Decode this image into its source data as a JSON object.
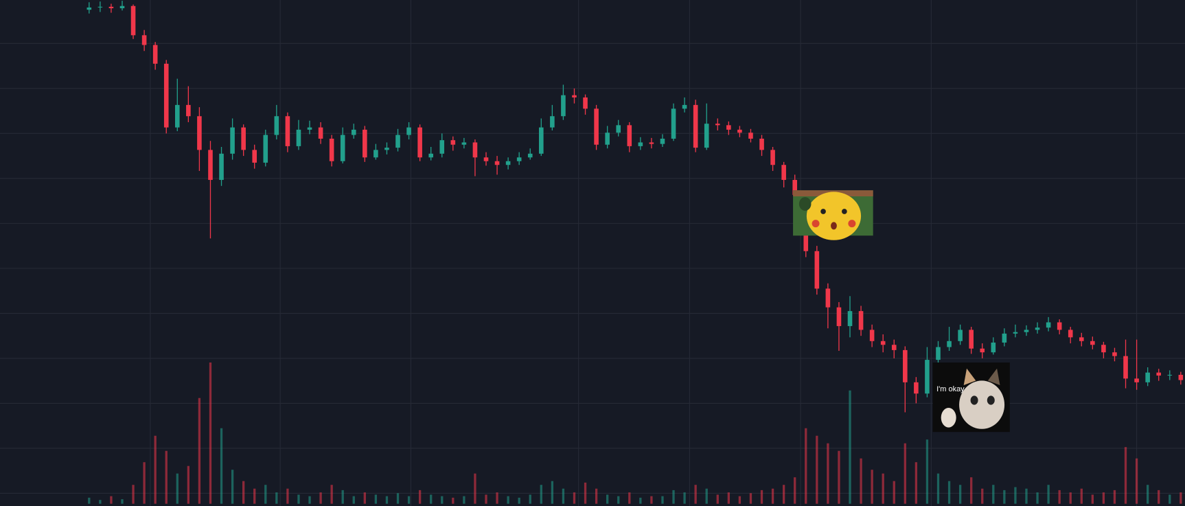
{
  "chart_data": {
    "type": "candlestick",
    "open": [
      645,
      648,
      649,
      647,
      650,
      611,
      598,
      573,
      488,
      518,
      503,
      458,
      418,
      453,
      488,
      458,
      441,
      478,
      503,
      463,
      485,
      488,
      473,
      443,
      478,
      485,
      448,
      458,
      461,
      478,
      488,
      448,
      453,
      471,
      465,
      468,
      448,
      443,
      438,
      443,
      448,
      453,
      488,
      503,
      531,
      528,
      513,
      465,
      481,
      491,
      463,
      468,
      466,
      473,
      513,
      518,
      461,
      493,
      491,
      485,
      481,
      473,
      458,
      438,
      418,
      398,
      323,
      273,
      248,
      223,
      243,
      218,
      203,
      198,
      191,
      148,
      133,
      178,
      195,
      203,
      218,
      193,
      188,
      201,
      213,
      215,
      218,
      221,
      228,
      218,
      208,
      203,
      198,
      188,
      183,
      153,
      148,
      161,
      157,
      158
    ],
    "high": [
      655,
      656,
      653,
      657,
      652,
      618,
      602,
      578,
      553,
      543,
      515,
      470,
      462,
      500,
      492,
      465,
      485,
      518,
      508,
      498,
      497,
      495,
      478,
      488,
      493,
      490,
      466,
      468,
      486,
      495,
      492,
      462,
      480,
      476,
      474,
      472,
      455,
      450,
      448,
      455,
      460,
      500,
      518,
      545,
      540,
      532,
      518,
      490,
      498,
      495,
      475,
      474,
      479,
      520,
      528,
      525,
      520,
      500,
      496,
      490,
      486,
      478,
      462,
      442,
      425,
      402,
      330,
      280,
      255,
      263,
      250,
      225,
      212,
      205,
      196,
      155,
      195,
      203,
      222,
      225,
      222,
      200,
      208,
      220,
      225,
      224,
      228,
      235,
      232,
      222,
      214,
      209,
      202,
      194,
      205,
      205,
      168,
      166,
      164,
      162
    ],
    "low": [
      640,
      642,
      641,
      644,
      606,
      590,
      565,
      480,
      483,
      495,
      430,
      340,
      410,
      445,
      450,
      433,
      436,
      472,
      455,
      458,
      479,
      466,
      436,
      440,
      473,
      442,
      445,
      452,
      456,
      472,
      443,
      444,
      448,
      457,
      460,
      423,
      437,
      425,
      432,
      438,
      445,
      450,
      484,
      498,
      520,
      505,
      458,
      460,
      476,
      455,
      458,
      460,
      462,
      470,
      508,
      455,
      458,
      484,
      478,
      475,
      468,
      450,
      430,
      408,
      385,
      315,
      265,
      220,
      190,
      208,
      210,
      195,
      188,
      180,
      108,
      120,
      128,
      172,
      190,
      198,
      186,
      180,
      185,
      196,
      208,
      210,
      213,
      216,
      212,
      200,
      196,
      192,
      180,
      176,
      140,
      138,
      143,
      150,
      151,
      145
    ],
    "close": [
      648,
      649,
      647,
      650,
      611,
      598,
      573,
      488,
      518,
      503,
      458,
      418,
      453,
      488,
      458,
      441,
      478,
      503,
      463,
      485,
      488,
      473,
      443,
      478,
      485,
      448,
      458,
      461,
      478,
      488,
      448,
      453,
      471,
      465,
      468,
      448,
      443,
      438,
      443,
      448,
      453,
      488,
      503,
      531,
      528,
      513,
      465,
      481,
      491,
      463,
      468,
      466,
      473,
      513,
      518,
      461,
      493,
      491,
      485,
      481,
      473,
      458,
      438,
      418,
      398,
      323,
      273,
      248,
      223,
      243,
      218,
      203,
      198,
      191,
      148,
      133,
      178,
      195,
      203,
      218,
      193,
      188,
      201,
      213,
      215,
      218,
      221,
      228,
      218,
      208,
      203,
      198,
      188,
      183,
      153,
      148,
      161,
      157,
      158,
      151
    ],
    "volume": [
      8,
      5,
      10,
      6,
      25,
      55,
      90,
      70,
      40,
      50,
      140,
      187,
      100,
      45,
      30,
      20,
      25,
      15,
      20,
      12,
      10,
      15,
      25,
      18,
      10,
      15,
      12,
      10,
      14,
      10,
      18,
      12,
      10,
      8,
      10,
      40,
      12,
      15,
      10,
      8,
      12,
      25,
      30,
      20,
      15,
      28,
      20,
      12,
      10,
      15,
      8,
      10,
      10,
      18,
      15,
      25,
      20,
      12,
      15,
      10,
      14,
      18,
      20,
      25,
      35,
      100,
      90,
      80,
      70,
      150,
      60,
      45,
      40,
      30,
      80,
      55,
      85,
      40,
      30,
      25,
      35,
      20,
      25,
      18,
      22,
      20,
      15,
      25,
      18,
      15,
      20,
      12,
      15,
      18,
      75,
      60,
      25,
      18,
      12,
      15
    ],
    "up_color": "#22a08c",
    "down_color": "#f0374a",
    "ylim": [
      -17,
      658
    ],
    "yticks": [
      0,
      60,
      120,
      180,
      240,
      300,
      360,
      420,
      480,
      540,
      600
    ],
    "y2lim": [
      0,
      200
    ],
    "grid": true,
    "annotation": "I'm okay"
  }
}
